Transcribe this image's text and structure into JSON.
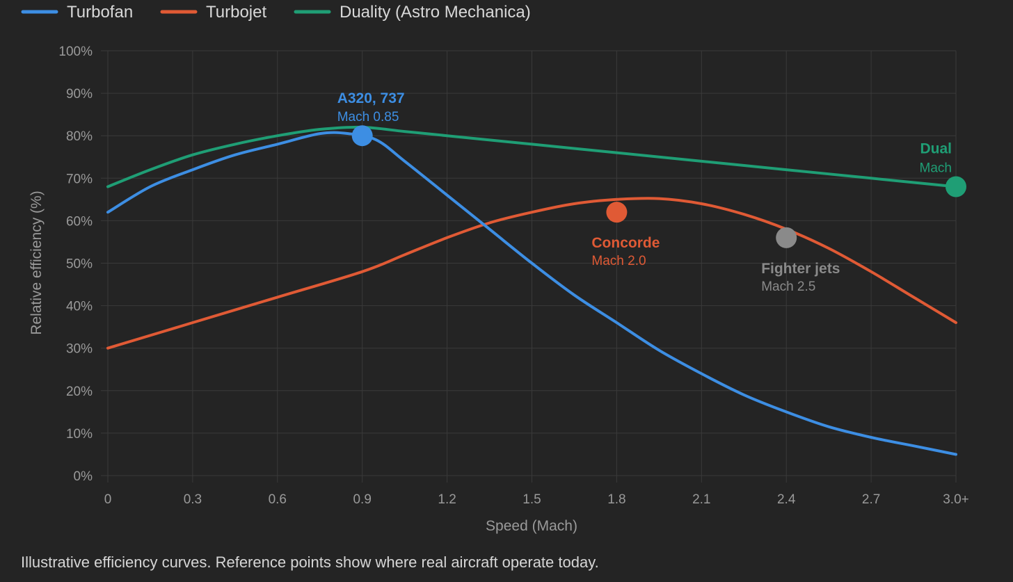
{
  "chart_data": {
    "type": "line",
    "xlabel": "Speed (Mach)",
    "ylabel": "Relative efficiency (%)",
    "xlim": [
      0,
      3.0
    ],
    "ylim": [
      0,
      100
    ],
    "grid": true,
    "legend_placement": "top-left",
    "x_ticks": [
      {
        "value": 0,
        "label": "0"
      },
      {
        "value": 0.3,
        "label": "0.3"
      },
      {
        "value": 0.6,
        "label": "0.6"
      },
      {
        "value": 0.9,
        "label": "0.9"
      },
      {
        "value": 1.2,
        "label": "1.2"
      },
      {
        "value": 1.5,
        "label": "1.5"
      },
      {
        "value": 1.8,
        "label": "1.8"
      },
      {
        "value": 2.1,
        "label": "2.1"
      },
      {
        "value": 2.4,
        "label": "2.4"
      },
      {
        "value": 2.7,
        "label": "2.7"
      },
      {
        "value": 3.0,
        "label": "3.0+"
      }
    ],
    "y_ticks": [
      {
        "value": 0,
        "label": "0%"
      },
      {
        "value": 10,
        "label": "10%"
      },
      {
        "value": 20,
        "label": "20%"
      },
      {
        "value": 30,
        "label": "30%"
      },
      {
        "value": 40,
        "label": "40%"
      },
      {
        "value": 50,
        "label": "50%"
      },
      {
        "value": 60,
        "label": "60%"
      },
      {
        "value": 70,
        "label": "70%"
      },
      {
        "value": 80,
        "label": "80%"
      },
      {
        "value": 90,
        "label": "90%"
      },
      {
        "value": 100,
        "label": "100%"
      }
    ],
    "series": [
      {
        "name": "Turbofan",
        "color": "#3d8ee3",
        "points": [
          [
            0,
            62
          ],
          [
            0.15,
            68
          ],
          [
            0.3,
            72
          ],
          [
            0.45,
            75.5
          ],
          [
            0.6,
            78
          ],
          [
            0.75,
            80.5
          ],
          [
            0.85,
            80.5
          ],
          [
            0.95,
            79
          ],
          [
            1.05,
            74
          ],
          [
            1.2,
            66
          ],
          [
            1.35,
            58
          ],
          [
            1.5,
            50
          ],
          [
            1.65,
            42.5
          ],
          [
            1.8,
            36
          ],
          [
            1.95,
            29.5
          ],
          [
            2.1,
            24
          ],
          [
            2.25,
            19
          ],
          [
            2.4,
            15
          ],
          [
            2.55,
            11.5
          ],
          [
            2.7,
            9
          ],
          [
            2.85,
            7
          ],
          [
            3.0,
            5
          ]
        ]
      },
      {
        "name": "Turbojet",
        "color": "#e05a35",
        "points": [
          [
            0,
            30
          ],
          [
            0.3,
            36
          ],
          [
            0.6,
            42
          ],
          [
            0.9,
            48
          ],
          [
            1.05,
            52
          ],
          [
            1.2,
            56
          ],
          [
            1.35,
            59.5
          ],
          [
            1.5,
            62
          ],
          [
            1.65,
            64
          ],
          [
            1.8,
            65
          ],
          [
            1.95,
            65.2
          ],
          [
            2.1,
            64
          ],
          [
            2.25,
            61.5
          ],
          [
            2.4,
            58
          ],
          [
            2.55,
            53.5
          ],
          [
            2.7,
            48
          ],
          [
            2.85,
            42
          ],
          [
            3.0,
            36
          ]
        ]
      },
      {
        "name": "Duality (Astro Mechanica)",
        "color": "#1f9e75",
        "points": [
          [
            0,
            68
          ],
          [
            0.15,
            72
          ],
          [
            0.3,
            75.5
          ],
          [
            0.45,
            78
          ],
          [
            0.6,
            80
          ],
          [
            0.75,
            81.5
          ],
          [
            0.9,
            82
          ],
          [
            1.05,
            81
          ],
          [
            1.2,
            80
          ],
          [
            1.5,
            78
          ],
          [
            1.8,
            76
          ],
          [
            2.1,
            74
          ],
          [
            2.4,
            72
          ],
          [
            2.7,
            70
          ],
          [
            3.0,
            68
          ]
        ]
      }
    ],
    "reference_points": [
      {
        "name": "A320, 737",
        "sub": "Mach 0.85",
        "x": 0.9,
        "y": 80,
        "color": "#3d8ee3",
        "label_pos": "above"
      },
      {
        "name": "Concorde",
        "sub": "Mach 2.0",
        "x": 1.8,
        "y": 62,
        "color": "#e05a35",
        "label_pos": "below"
      },
      {
        "name": "Fighter jets",
        "sub": "Mach 2.5",
        "x": 2.4,
        "y": 56,
        "color": "#8a8a8a",
        "label_pos": "below"
      },
      {
        "name": "Dual",
        "sub": "Mach",
        "x": 3.0,
        "y": 68,
        "color": "#1f9e75",
        "label_pos": "above-left"
      }
    ]
  },
  "caption": "Illustrative efficiency curves. Reference points show where real aircraft operate today."
}
